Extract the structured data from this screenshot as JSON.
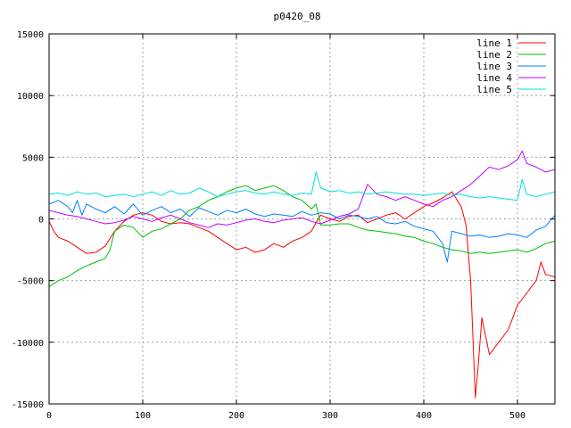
{
  "chart_data": {
    "type": "line",
    "title": "p0420_08",
    "xlabel": "",
    "ylabel": "",
    "xlim": [
      0,
      540
    ],
    "ylim": [
      -15000,
      15000
    ],
    "xticks": [
      0,
      100,
      200,
      300,
      400,
      500
    ],
    "yticks": [
      -15000,
      -10000,
      -5000,
      0,
      5000,
      10000,
      15000
    ],
    "grid": true,
    "legend_position": "top-right",
    "series": [
      {
        "name": "line 1",
        "color": "#ff0000",
        "x": [
          0,
          5,
          10,
          20,
          30,
          40,
          50,
          60,
          70,
          80,
          90,
          100,
          110,
          120,
          130,
          140,
          150,
          160,
          170,
          180,
          190,
          200,
          210,
          220,
          230,
          240,
          250,
          260,
          270,
          280,
          285,
          290,
          300,
          310,
          320,
          330,
          340,
          350,
          360,
          370,
          380,
          390,
          400,
          410,
          420,
          430,
          440,
          445,
          450,
          455,
          458,
          462,
          470,
          480,
          490,
          500,
          510,
          520,
          525,
          530,
          540
        ],
        "y": [
          -200,
          -1000,
          -1500,
          -1800,
          -2300,
          -2800,
          -2700,
          -2200,
          -1000,
          -200,
          300,
          500,
          300,
          -200,
          -400,
          -300,
          -400,
          -700,
          -1000,
          -1500,
          -2000,
          -2500,
          -2300,
          -2700,
          -2500,
          -2000,
          -2300,
          -1800,
          -1500,
          -1000,
          -300,
          300,
          0,
          -200,
          200,
          300,
          -300,
          0,
          300,
          500,
          0,
          500,
          1000,
          1300,
          1700,
          2200,
          1000,
          -500,
          -5000,
          -14500,
          -12000,
          -8000,
          -11000,
          -10000,
          -9000,
          -7000,
          -6000,
          -5000,
          -3500,
          -4500,
          -4700
        ]
      },
      {
        "name": "line 2",
        "color": "#00c000",
        "x": [
          0,
          10,
          20,
          30,
          40,
          50,
          60,
          65,
          70,
          80,
          90,
          100,
          110,
          120,
          130,
          140,
          150,
          160,
          170,
          180,
          190,
          200,
          210,
          220,
          230,
          240,
          250,
          260,
          270,
          280,
          285,
          290,
          300,
          310,
          320,
          330,
          340,
          350,
          360,
          370,
          380,
          390,
          400,
          410,
          420,
          430,
          440,
          450,
          460,
          470,
          480,
          490,
          500,
          510,
          520,
          530,
          540
        ],
        "y": [
          -5500,
          -5000,
          -4700,
          -4200,
          -3800,
          -3500,
          -3200,
          -2500,
          -1000,
          -500,
          -700,
          -1500,
          -1000,
          -800,
          -400,
          0,
          700,
          1000,
          1500,
          1800,
          2200,
          2500,
          2700,
          2300,
          2500,
          2700,
          2300,
          1800,
          1500,
          800,
          1200,
          -500,
          -500,
          -400,
          -400,
          -700,
          -900,
          -1000,
          -1100,
          -1200,
          -1400,
          -1500,
          -1800,
          -2000,
          -2300,
          -2500,
          -2600,
          -2800,
          -2700,
          -2800,
          -2700,
          -2600,
          -2500,
          -2700,
          -2400,
          -2000,
          -1800
        ]
      },
      {
        "name": "line 3",
        "color": "#0080ff",
        "x": [
          0,
          10,
          20,
          25,
          30,
          35,
          40,
          50,
          60,
          70,
          80,
          90,
          100,
          110,
          120,
          130,
          140,
          150,
          160,
          170,
          180,
          190,
          200,
          210,
          220,
          230,
          240,
          250,
          260,
          270,
          280,
          290,
          300,
          310,
          320,
          330,
          340,
          350,
          360,
          370,
          380,
          390,
          400,
          410,
          415,
          420,
          425,
          430,
          440,
          450,
          460,
          470,
          480,
          490,
          500,
          510,
          520,
          530,
          540
        ],
        "y": [
          1200,
          1500,
          1000,
          500,
          1500,
          300,
          1200,
          800,
          500,
          1000,
          400,
          1200,
          300,
          700,
          1000,
          500,
          800,
          200,
          900,
          600,
          300,
          700,
          500,
          800,
          400,
          200,
          400,
          300,
          200,
          600,
          300,
          500,
          400,
          0,
          300,
          200,
          0,
          200,
          -300,
          -400,
          -200,
          -600,
          -800,
          -1000,
          -1500,
          -2000,
          -3500,
          -1000,
          -1200,
          -1400,
          -1300,
          -1500,
          -1400,
          -1200,
          -1300,
          -1500,
          -900,
          -600,
          300
        ]
      },
      {
        "name": "line 4",
        "color": "#c000ff",
        "x": [
          0,
          10,
          20,
          30,
          40,
          50,
          60,
          70,
          80,
          90,
          100,
          110,
          120,
          130,
          140,
          150,
          160,
          170,
          180,
          190,
          200,
          210,
          220,
          230,
          240,
          250,
          260,
          270,
          280,
          290,
          300,
          310,
          320,
          330,
          340,
          350,
          360,
          370,
          380,
          390,
          400,
          410,
          420,
          430,
          440,
          450,
          460,
          470,
          480,
          490,
          500,
          505,
          510,
          520,
          530,
          540
        ],
        "y": [
          700,
          500,
          300,
          200,
          0,
          -200,
          -400,
          -300,
          -100,
          200,
          0,
          -200,
          100,
          300,
          0,
          -300,
          -500,
          -700,
          -400,
          -500,
          -300,
          -100,
          0,
          -200,
          -300,
          -100,
          0,
          100,
          -200,
          -400,
          -100,
          200,
          400,
          800,
          2800,
          2000,
          1800,
          1500,
          1800,
          1500,
          1200,
          1000,
          1500,
          1800,
          2300,
          2800,
          3500,
          4200,
          4000,
          4300,
          4800,
          5500,
          4500,
          4200,
          3800,
          4000
        ]
      },
      {
        "name": "line 5",
        "color": "#00e0e0",
        "x": [
          0,
          10,
          20,
          30,
          40,
          50,
          60,
          70,
          80,
          90,
          100,
          110,
          120,
          130,
          140,
          150,
          160,
          170,
          180,
          190,
          200,
          210,
          220,
          230,
          240,
          250,
          260,
          270,
          280,
          285,
          290,
          300,
          310,
          320,
          330,
          340,
          350,
          360,
          370,
          380,
          390,
          400,
          410,
          420,
          430,
          440,
          450,
          460,
          470,
          480,
          490,
          500,
          505,
          510,
          520,
          530,
          540
        ],
        "y": [
          2000,
          2100,
          1900,
          2200,
          2000,
          2100,
          1800,
          1900,
          2000,
          1800,
          2000,
          2200,
          1900,
          2300,
          2000,
          2100,
          2500,
          2200,
          1800,
          2000,
          2200,
          2300,
          2100,
          2000,
          2200,
          2000,
          1900,
          2100,
          2000,
          3800,
          2500,
          2200,
          2300,
          2100,
          2200,
          2000,
          2100,
          2200,
          2100,
          2000,
          2000,
          1900,
          2000,
          2100,
          1900,
          2000,
          1800,
          1700,
          1800,
          1700,
          1600,
          1500,
          3200,
          2000,
          1800,
          2000,
          2200
        ]
      }
    ]
  }
}
